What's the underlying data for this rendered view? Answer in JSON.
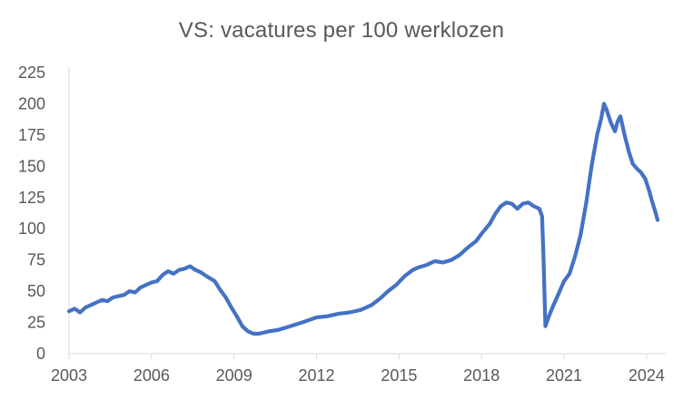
{
  "chart_data": {
    "type": "line",
    "title": "VS: vacatures per 100 werklozen",
    "xlabel": "",
    "ylabel": "",
    "xlim": [
      2003,
      2024.4
    ],
    "ylim": [
      0,
      225
    ],
    "x_ticks": [
      "2003",
      "2006",
      "2009",
      "2012",
      "2015",
      "2018",
      "2021",
      "2024"
    ],
    "y_ticks": [
      "0",
      "25",
      "50",
      "75",
      "100",
      "125",
      "150",
      "175",
      "200",
      "225"
    ],
    "grid": false,
    "legend": "none",
    "series": [
      {
        "color": "#4472C4",
        "points": [
          [
            2003.0,
            34
          ],
          [
            2003.2,
            36
          ],
          [
            2003.4,
            33
          ],
          [
            2003.6,
            37
          ],
          [
            2003.8,
            39
          ],
          [
            2004.0,
            41
          ],
          [
            2004.2,
            43
          ],
          [
            2004.4,
            42
          ],
          [
            2004.6,
            45
          ],
          [
            2004.8,
            46
          ],
          [
            2005.0,
            47
          ],
          [
            2005.2,
            50
          ],
          [
            2005.4,
            49
          ],
          [
            2005.6,
            53
          ],
          [
            2005.8,
            55
          ],
          [
            2006.0,
            57
          ],
          [
            2006.2,
            58
          ],
          [
            2006.4,
            63
          ],
          [
            2006.6,
            66
          ],
          [
            2006.8,
            64
          ],
          [
            2007.0,
            67
          ],
          [
            2007.2,
            68
          ],
          [
            2007.4,
            70
          ],
          [
            2007.6,
            67
          ],
          [
            2007.8,
            65
          ],
          [
            2008.0,
            62
          ],
          [
            2008.3,
            58
          ],
          [
            2008.5,
            51
          ],
          [
            2008.7,
            45
          ],
          [
            2008.9,
            37
          ],
          [
            2009.1,
            30
          ],
          [
            2009.3,
            22
          ],
          [
            2009.5,
            18
          ],
          [
            2009.7,
            16
          ],
          [
            2009.9,
            16
          ],
          [
            2010.1,
            17
          ],
          [
            2010.3,
            18
          ],
          [
            2010.6,
            19
          ],
          [
            2010.9,
            21
          ],
          [
            2011.2,
            23
          ],
          [
            2011.6,
            26
          ],
          [
            2012.0,
            29
          ],
          [
            2012.4,
            30
          ],
          [
            2012.8,
            32
          ],
          [
            2013.2,
            33
          ],
          [
            2013.6,
            35
          ],
          [
            2014.0,
            39
          ],
          [
            2014.3,
            44
          ],
          [
            2014.6,
            50
          ],
          [
            2014.9,
            55
          ],
          [
            2015.2,
            62
          ],
          [
            2015.5,
            67
          ],
          [
            2015.7,
            69
          ],
          [
            2016.0,
            71
          ],
          [
            2016.3,
            74
          ],
          [
            2016.6,
            73
          ],
          [
            2016.9,
            75
          ],
          [
            2017.2,
            79
          ],
          [
            2017.5,
            85
          ],
          [
            2017.8,
            90
          ],
          [
            2018.0,
            96
          ],
          [
            2018.3,
            104
          ],
          [
            2018.5,
            112
          ],
          [
            2018.7,
            118
          ],
          [
            2018.9,
            121
          ],
          [
            2019.1,
            120
          ],
          [
            2019.3,
            116
          ],
          [
            2019.5,
            120
          ],
          [
            2019.7,
            121
          ],
          [
            2019.9,
            118
          ],
          [
            2020.1,
            116
          ],
          [
            2020.2,
            110
          ],
          [
            2020.25,
            80
          ],
          [
            2020.32,
            22
          ],
          [
            2020.45,
            30
          ],
          [
            2020.6,
            38
          ],
          [
            2020.8,
            48
          ],
          [
            2021.0,
            58
          ],
          [
            2021.2,
            64
          ],
          [
            2021.4,
            78
          ],
          [
            2021.6,
            95
          ],
          [
            2021.8,
            120
          ],
          [
            2022.0,
            150
          ],
          [
            2022.2,
            175
          ],
          [
            2022.35,
            188
          ],
          [
            2022.45,
            200
          ],
          [
            2022.55,
            195
          ],
          [
            2022.7,
            185
          ],
          [
            2022.85,
            178
          ],
          [
            2022.95,
            186
          ],
          [
            2023.05,
            190
          ],
          [
            2023.2,
            175
          ],
          [
            2023.35,
            162
          ],
          [
            2023.5,
            152
          ],
          [
            2023.65,
            148
          ],
          [
            2023.8,
            145
          ],
          [
            2023.95,
            140
          ],
          [
            2024.1,
            130
          ],
          [
            2024.2,
            122
          ],
          [
            2024.3,
            115
          ],
          [
            2024.4,
            107
          ]
        ]
      }
    ]
  }
}
